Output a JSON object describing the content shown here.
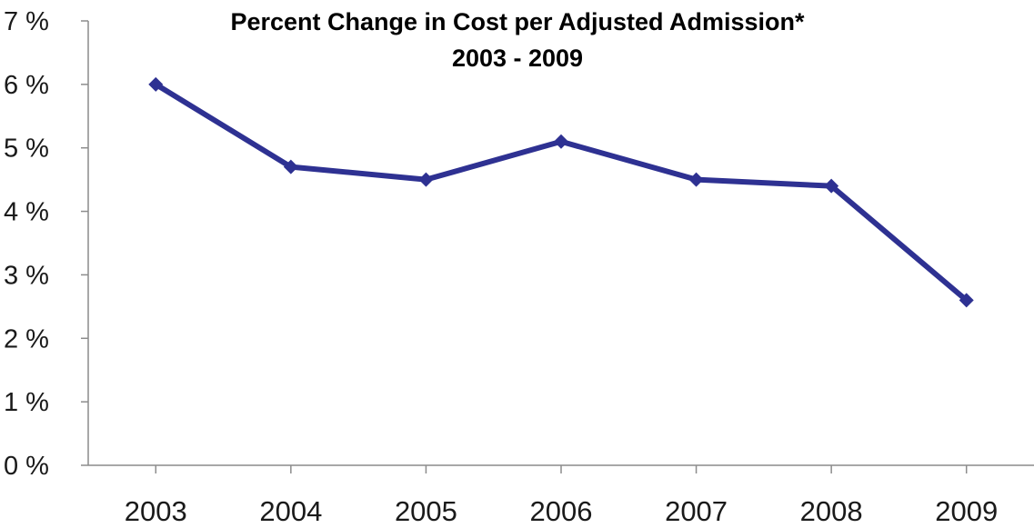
{
  "chart_data": {
    "type": "line",
    "title": "Percent Change in Cost per Adjusted Admission*",
    "subtitle": "2003 - 2009",
    "categories": [
      "2003",
      "2004",
      "2005",
      "2006",
      "2007",
      "2008",
      "2009"
    ],
    "series": [
      {
        "values": [
          6.0,
          4.7,
          4.5,
          5.1,
          4.5,
          4.4,
          2.6
        ]
      }
    ],
    "ylim": [
      0,
      7
    ],
    "yticks": [
      0,
      1,
      2,
      3,
      4,
      5,
      6,
      7
    ],
    "ytick_labels": [
      "0 %",
      "1 %",
      "2 %",
      "3 %",
      "4 %",
      "5 %",
      "6 %",
      "7 %"
    ],
    "grid": false,
    "legend": "none",
    "line_color": "#2e3192",
    "marker": "diamond"
  }
}
